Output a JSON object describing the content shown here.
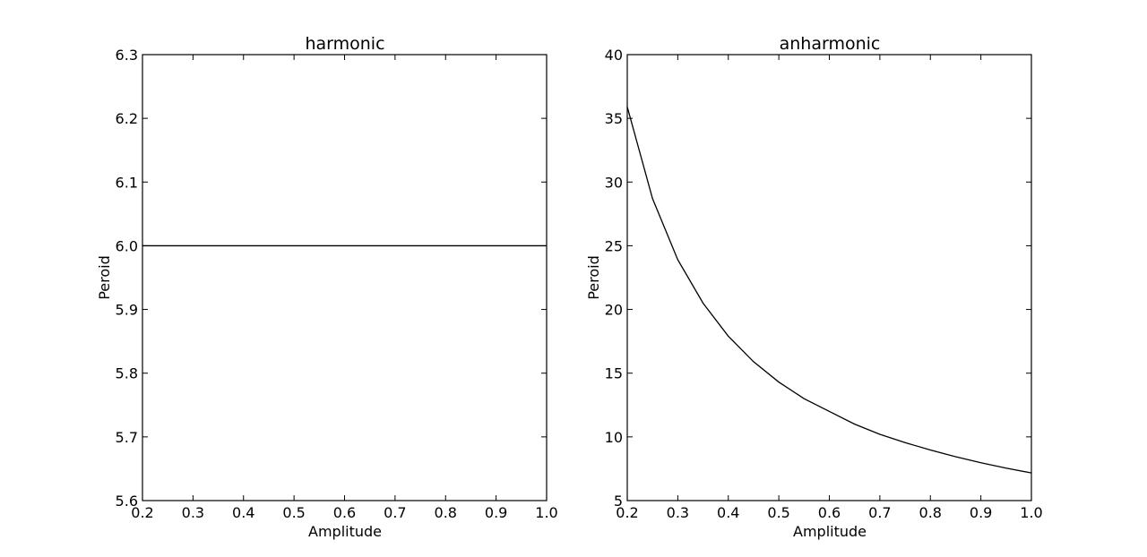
{
  "chart_data": [
    {
      "type": "line",
      "title": "harmonic",
      "xlabel": "Amplitude",
      "ylabel": "Peroid",
      "xlim": [
        0.2,
        1.0
      ],
      "ylim": [
        5.6,
        6.3
      ],
      "xticks": [
        "0.2",
        "0.3",
        "0.4",
        "0.5",
        "0.6",
        "0.7",
        "0.8",
        "0.9",
        "1.0"
      ],
      "yticks": [
        "5.6",
        "5.7",
        "5.8",
        "5.9",
        "6.0",
        "6.1",
        "6.2",
        "6.3"
      ],
      "grid": false,
      "series": [
        {
          "color": "#000000",
          "x": [
            0.2,
            0.3,
            0.4,
            0.5,
            0.6,
            0.7,
            0.8,
            0.9,
            1.0
          ],
          "y": [
            6.0,
            6.0,
            6.0,
            6.0,
            6.0,
            6.0,
            6.0,
            6.0,
            6.0
          ]
        }
      ]
    },
    {
      "type": "line",
      "title": "anharmonic",
      "xlabel": "Amplitude",
      "ylabel": "Peroid",
      "xlim": [
        0.2,
        1.0
      ],
      "ylim": [
        5,
        40
      ],
      "xticks": [
        "0.2",
        "0.3",
        "0.4",
        "0.5",
        "0.6",
        "0.7",
        "0.8",
        "0.9",
        "1.0"
      ],
      "yticks": [
        "5",
        "10",
        "15",
        "20",
        "25",
        "30",
        "35",
        "40"
      ],
      "grid": false,
      "series": [
        {
          "color": "#000000",
          "x": [
            0.2,
            0.25,
            0.3,
            0.35,
            0.4,
            0.45,
            0.5,
            0.55,
            0.6,
            0.65,
            0.7,
            0.75,
            0.8,
            0.85,
            0.9,
            0.95,
            1.0
          ],
          "y": [
            35.9,
            28.7,
            23.9,
            20.5,
            17.9,
            15.9,
            14.3,
            13.0,
            12.0,
            11.0,
            10.2,
            9.55,
            8.97,
            8.44,
            7.97,
            7.55,
            7.17
          ]
        }
      ]
    }
  ]
}
